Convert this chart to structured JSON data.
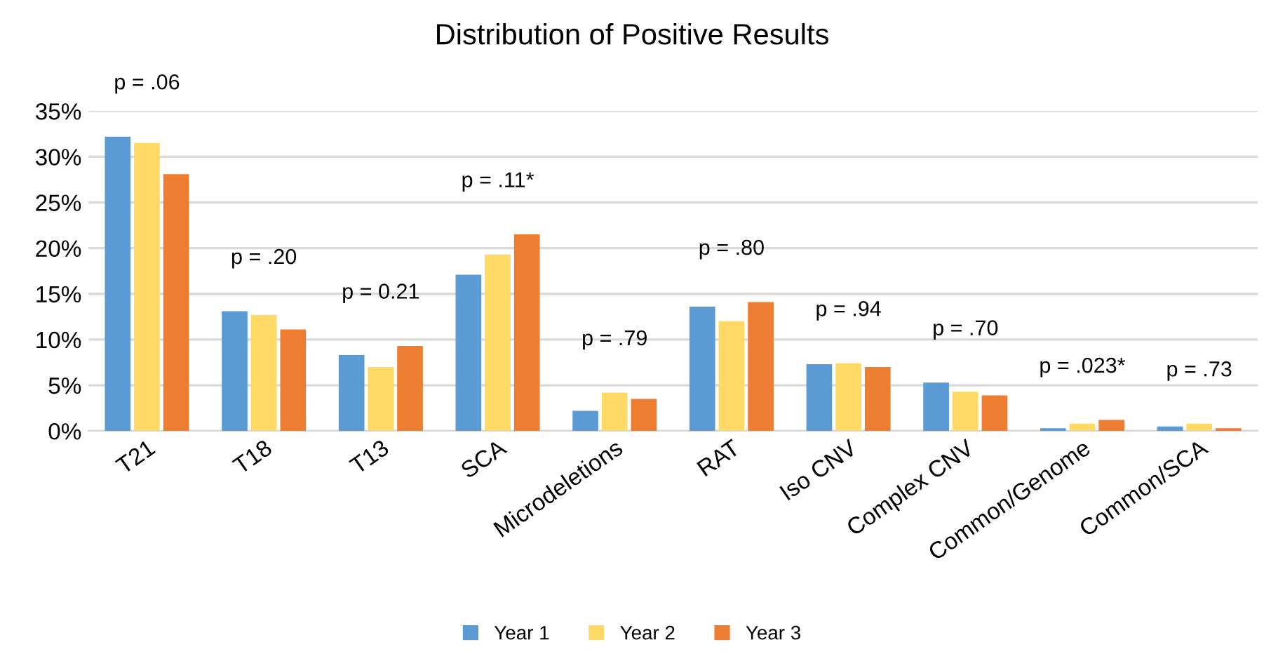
{
  "chart_data": {
    "type": "bar",
    "title": "Distribution of Positive Results",
    "categories": [
      "T21",
      "T18",
      "T13",
      "SCA",
      "Microdeletions",
      "RAT",
      "Iso CNV",
      "Complex CNV",
      "Common/Genome",
      "Common/SCA"
    ],
    "series": [
      {
        "name": "Year 1",
        "color": "#5b9bd5",
        "values": [
          32.2,
          13.1,
          8.3,
          17.1,
          2.2,
          13.6,
          7.3,
          5.3,
          0.3,
          0.5
        ]
      },
      {
        "name": "Year 2",
        "color": "#ffd966",
        "values": [
          31.5,
          12.7,
          7.0,
          19.3,
          4.2,
          12.0,
          7.4,
          4.3,
          0.8,
          0.8
        ]
      },
      {
        "name": "Year 3",
        "color": "#ed7d31",
        "values": [
          28.1,
          11.1,
          9.3,
          21.5,
          3.5,
          14.1,
          7.0,
          3.9,
          1.2,
          0.3
        ]
      }
    ],
    "ylim": [
      0,
      35
    ],
    "yticks": [
      {
        "value": 0,
        "label": "0%"
      },
      {
        "value": 5,
        "label": "5%"
      },
      {
        "value": 10,
        "label": "10%"
      },
      {
        "value": 15,
        "label": "15%"
      },
      {
        "value": 20,
        "label": "20%"
      },
      {
        "value": 25,
        "label": "25%"
      },
      {
        "value": 30,
        "label": "30%"
      },
      {
        "value": 35,
        "label": "35%"
      }
    ],
    "annotations": [
      "p = .06",
      "p = .20",
      "p = 0.21",
      "p = .11*",
      "p = .79",
      "p = .80",
      "p = .94",
      "p = .70",
      "p = .023*",
      "p = .73"
    ],
    "grid": "y",
    "legend": "bottom"
  }
}
